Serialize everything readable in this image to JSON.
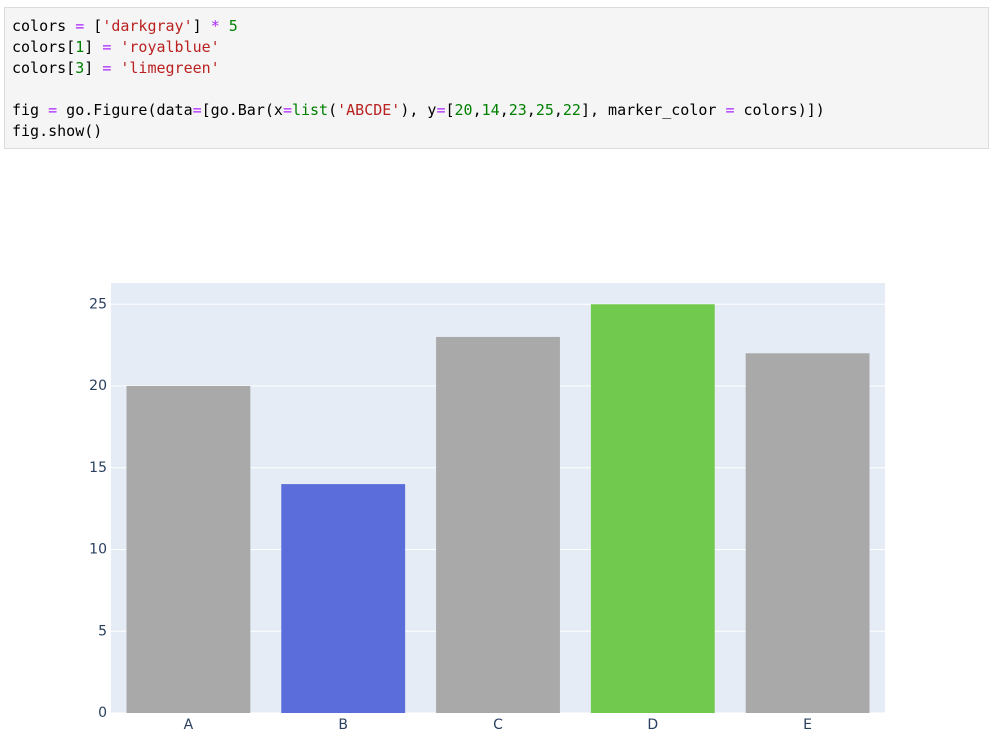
{
  "code_cell": {
    "lines": [
      [
        {
          "text": "colors ",
          "color": "#000000"
        },
        {
          "text": "=",
          "color": "#aa22ff"
        },
        {
          "text": " [",
          "color": "#000000"
        },
        {
          "text": "'darkgray'",
          "color": "#ba2121"
        },
        {
          "text": "] ",
          "color": "#000000"
        },
        {
          "text": "*",
          "color": "#aa22ff"
        },
        {
          "text": " ",
          "color": "#000000"
        },
        {
          "text": "5",
          "color": "#008000"
        }
      ],
      [
        {
          "text": "colors[",
          "color": "#000000"
        },
        {
          "text": "1",
          "color": "#008000"
        },
        {
          "text": "] ",
          "color": "#000000"
        },
        {
          "text": "=",
          "color": "#aa22ff"
        },
        {
          "text": " ",
          "color": "#000000"
        },
        {
          "text": "'royalblue'",
          "color": "#ba2121"
        }
      ],
      [
        {
          "text": "colors[",
          "color": "#000000"
        },
        {
          "text": "3",
          "color": "#008000"
        },
        {
          "text": "] ",
          "color": "#000000"
        },
        {
          "text": "=",
          "color": "#aa22ff"
        },
        {
          "text": " ",
          "color": "#000000"
        },
        {
          "text": "'limegreen'",
          "color": "#ba2121"
        }
      ],
      [],
      [
        {
          "text": "fig ",
          "color": "#000000"
        },
        {
          "text": "=",
          "color": "#aa22ff"
        },
        {
          "text": " go.Figure(data",
          "color": "#000000"
        },
        {
          "text": "=",
          "color": "#aa22ff"
        },
        {
          "text": "[go.Bar(x",
          "color": "#000000"
        },
        {
          "text": "=",
          "color": "#aa22ff"
        },
        {
          "text": "list",
          "color": "#008000"
        },
        {
          "text": "(",
          "color": "#000000"
        },
        {
          "text": "'ABCDE'",
          "color": "#ba2121"
        },
        {
          "text": "), y",
          "color": "#000000"
        },
        {
          "text": "=",
          "color": "#aa22ff"
        },
        {
          "text": "[",
          "color": "#000000"
        },
        {
          "text": "20",
          "color": "#008000"
        },
        {
          "text": ",",
          "color": "#000000"
        },
        {
          "text": "14",
          "color": "#008000"
        },
        {
          "text": ",",
          "color": "#000000"
        },
        {
          "text": "23",
          "color": "#008000"
        },
        {
          "text": ",",
          "color": "#000000"
        },
        {
          "text": "25",
          "color": "#008000"
        },
        {
          "text": ",",
          "color": "#000000"
        },
        {
          "text": "22",
          "color": "#008000"
        },
        {
          "text": "], marker_color ",
          "color": "#000000"
        },
        {
          "text": "=",
          "color": "#aa22ff"
        },
        {
          "text": " colors)])",
          "color": "#000000"
        }
      ],
      [
        {
          "text": "fig.show()",
          "color": "#000000"
        }
      ]
    ]
  },
  "chart_data": {
    "type": "bar",
    "categories": [
      "A",
      "B",
      "C",
      "D",
      "E"
    ],
    "values": [
      20,
      14,
      23,
      25,
      22
    ],
    "colors": [
      "#a9a9a9",
      "#5a6dda",
      "#a9a9a9",
      "#71c94e",
      "#a9a9a9"
    ],
    "ylim": [
      0,
      26.3
    ],
    "yticks": [
      0,
      5,
      10,
      15,
      20,
      25
    ],
    "grid": true
  }
}
